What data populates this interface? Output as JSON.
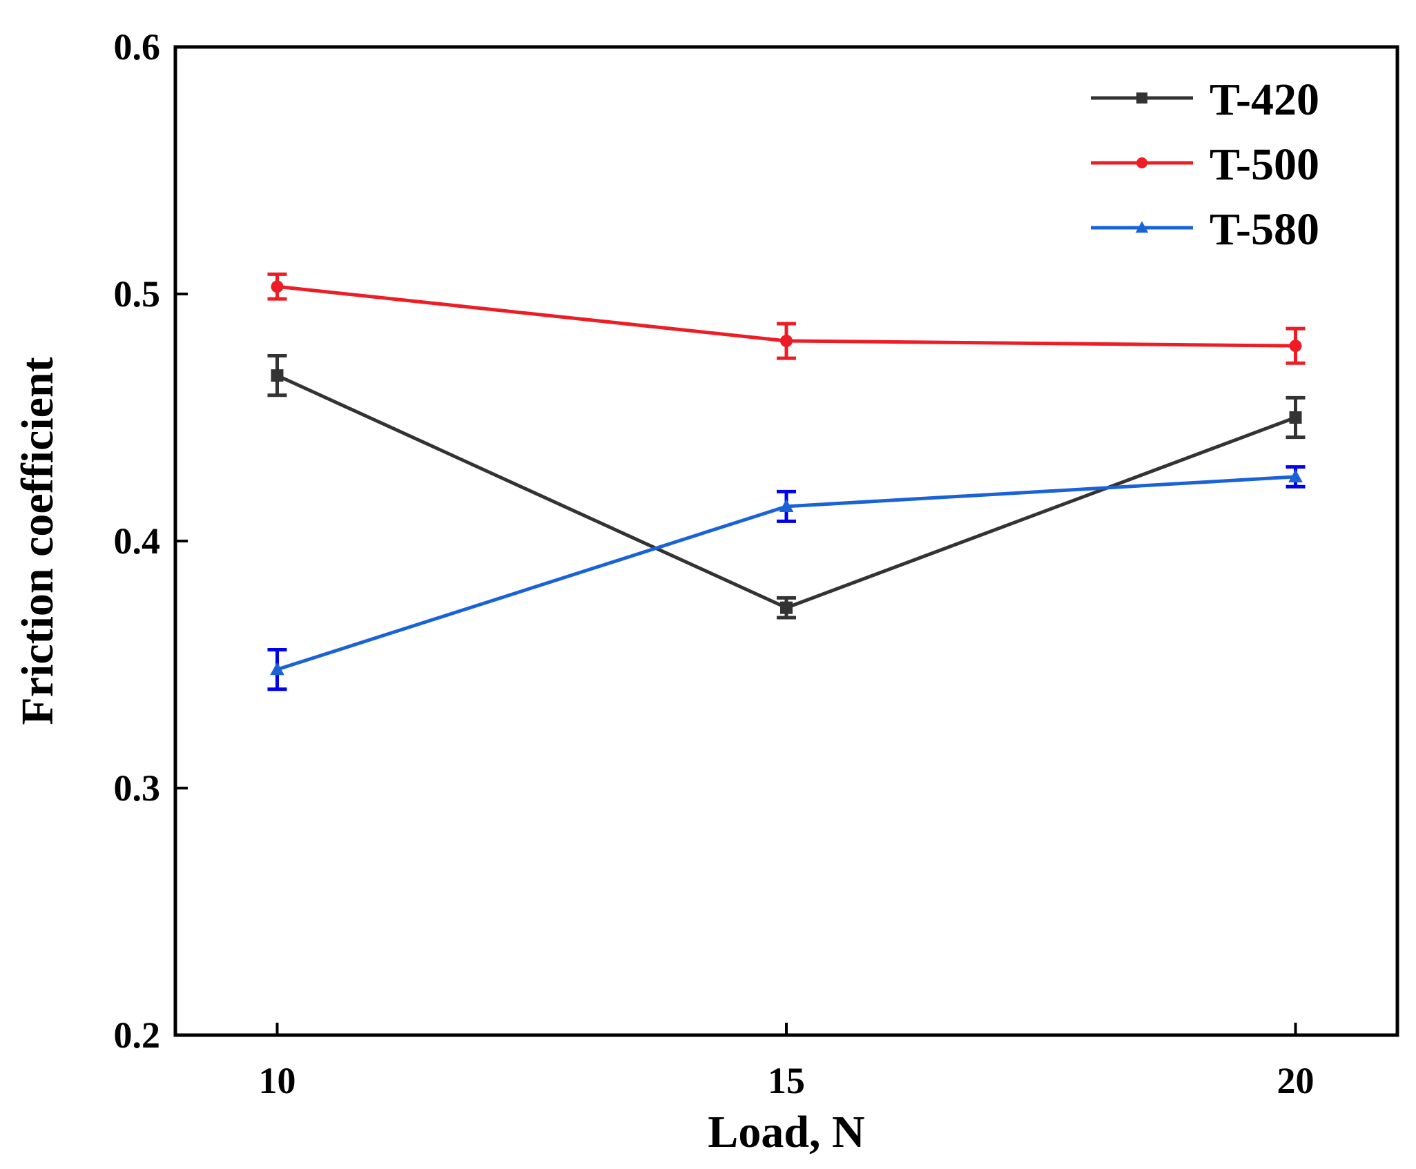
{
  "chart_data": {
    "type": "line",
    "title": "",
    "xlabel": "Load, N",
    "ylabel": "Friction coefficient",
    "x": [
      10,
      15,
      20
    ],
    "xlim": [
      9,
      21
    ],
    "ylim": [
      0.2,
      0.6
    ],
    "xticks": [
      "10",
      "15",
      "20"
    ],
    "yticks": [
      "0.2",
      "0.3",
      "0.4",
      "0.5",
      "0.6"
    ],
    "grid": false,
    "legend_position": "top-right",
    "series": [
      {
        "name": "T-420",
        "color": "#333333",
        "marker": "square",
        "values": [
          0.467,
          0.373,
          0.45
        ],
        "errors": [
          0.008,
          0.004,
          0.008
        ]
      },
      {
        "name": "T-500",
        "color": "#ee1c25",
        "marker": "circle",
        "values": [
          0.503,
          0.481,
          0.479
        ],
        "errors": [
          0.005,
          0.007,
          0.007
        ]
      },
      {
        "name": "T-580",
        "color": "#1a63d6",
        "err_color": "#0000ee",
        "marker": "triangle",
        "values": [
          0.348,
          0.414,
          0.426
        ],
        "errors": [
          0.008,
          0.006,
          0.004
        ]
      }
    ]
  }
}
